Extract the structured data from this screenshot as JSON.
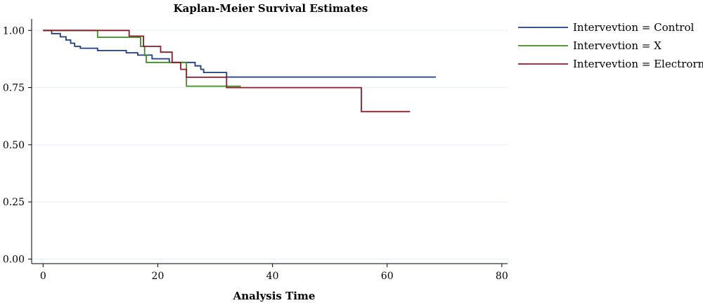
{
  "chart_data": {
    "type": "line",
    "title": "Kaplan-Meier Survival Estimates",
    "xlabel": "Analysis Time",
    "ylabel": "",
    "xlim": [
      -2,
      81
    ],
    "ylim": [
      -0.02,
      1.05
    ],
    "xticks": [
      "0",
      "20",
      "40",
      "60",
      "80"
    ],
    "xtick_values": [
      0,
      20,
      40,
      60,
      80
    ],
    "yticks": [
      "0.00",
      "0.25",
      "0.50",
      "0.75",
      "1.00"
    ],
    "ytick_values": [
      0,
      0.25,
      0.5,
      0.75,
      1
    ],
    "grid": true,
    "legend_position": "right",
    "series": [
      {
        "name": "Intervevtion = Control",
        "color": "#1f3c88",
        "points": [
          [
            0,
            1.0
          ],
          [
            1.5,
            0.986
          ],
          [
            3.0,
            0.972
          ],
          [
            4.0,
            0.958
          ],
          [
            4.8,
            0.944
          ],
          [
            5.5,
            0.93
          ],
          [
            6.5,
            0.922
          ],
          [
            9.5,
            0.912
          ],
          [
            14.5,
            0.902
          ],
          [
            16.5,
            0.892
          ],
          [
            19.0,
            0.876
          ],
          [
            22.0,
            0.86
          ],
          [
            26.5,
            0.845
          ],
          [
            27.5,
            0.83
          ],
          [
            28.0,
            0.816
          ],
          [
            32.0,
            0.796
          ],
          [
            68.5,
            0.796
          ]
        ]
      },
      {
        "name": "Intervevtion = X",
        "color": "#3f8c22",
        "points": [
          [
            0,
            1.0
          ],
          [
            9.5,
            0.97
          ],
          [
            17.0,
            0.93
          ],
          [
            17.7,
            0.89
          ],
          [
            18.0,
            0.86
          ],
          [
            25.0,
            0.756
          ],
          [
            34.5,
            0.756
          ]
        ]
      },
      {
        "name": "Intervevtion = Electrorn",
        "color": "#8a1c2b",
        "points": [
          [
            0,
            1.0
          ],
          [
            15.0,
            0.975
          ],
          [
            17.5,
            0.93
          ],
          [
            20.5,
            0.905
          ],
          [
            22.5,
            0.86
          ],
          [
            24.0,
            0.83
          ],
          [
            25.0,
            0.795
          ],
          [
            32.0,
            0.75
          ],
          [
            55.5,
            0.645
          ],
          [
            64.0,
            0.645
          ]
        ]
      }
    ]
  }
}
